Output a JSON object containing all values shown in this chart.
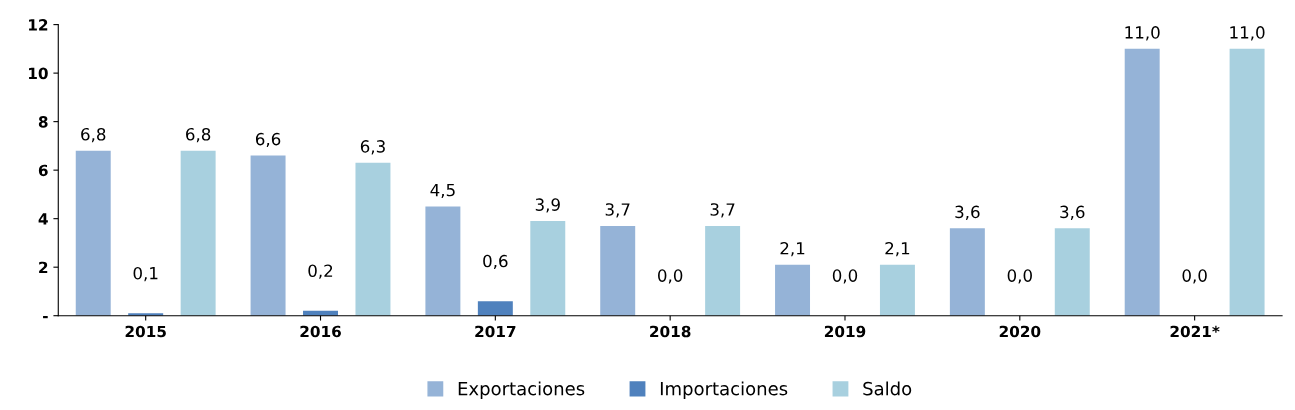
{
  "chart_data": {
    "type": "bar",
    "categories": [
      "2015",
      "2016",
      "2017",
      "2018",
      "2019",
      "2020",
      "2021*"
    ],
    "series": [
      {
        "name": "Exportaciones",
        "color": "#95b3d7",
        "values": [
          6.8,
          6.6,
          4.5,
          3.7,
          2.1,
          3.6,
          11.0
        ],
        "value_labels": [
          "6,8",
          "6,6",
          "4,5",
          "3,7",
          "2,1",
          "3,6",
          "11,0"
        ]
      },
      {
        "name": "Importaciones",
        "color": "#4f81bd",
        "values": [
          0.1,
          0.2,
          0.6,
          0.0,
          0.0,
          0.0,
          0.0
        ],
        "value_labels": [
          "0,1",
          "0,2",
          "0,6",
          "0,0",
          "0,0",
          "0,0",
          "0,0"
        ]
      },
      {
        "name": "Saldo",
        "color": "#a8d0df",
        "values": [
          6.8,
          6.3,
          3.9,
          3.7,
          2.1,
          3.6,
          11.0
        ],
        "value_labels": [
          "6,8",
          "6,3",
          "3,9",
          "3,7",
          "2,1",
          "3,6",
          "11,0"
        ]
      }
    ],
    "ylim": [
      0,
      12
    ],
    "yticks": [
      {
        "value": 0,
        "label": "-"
      },
      2,
      4,
      6,
      8,
      10,
      12
    ],
    "grid": false,
    "legend": "bottom"
  }
}
